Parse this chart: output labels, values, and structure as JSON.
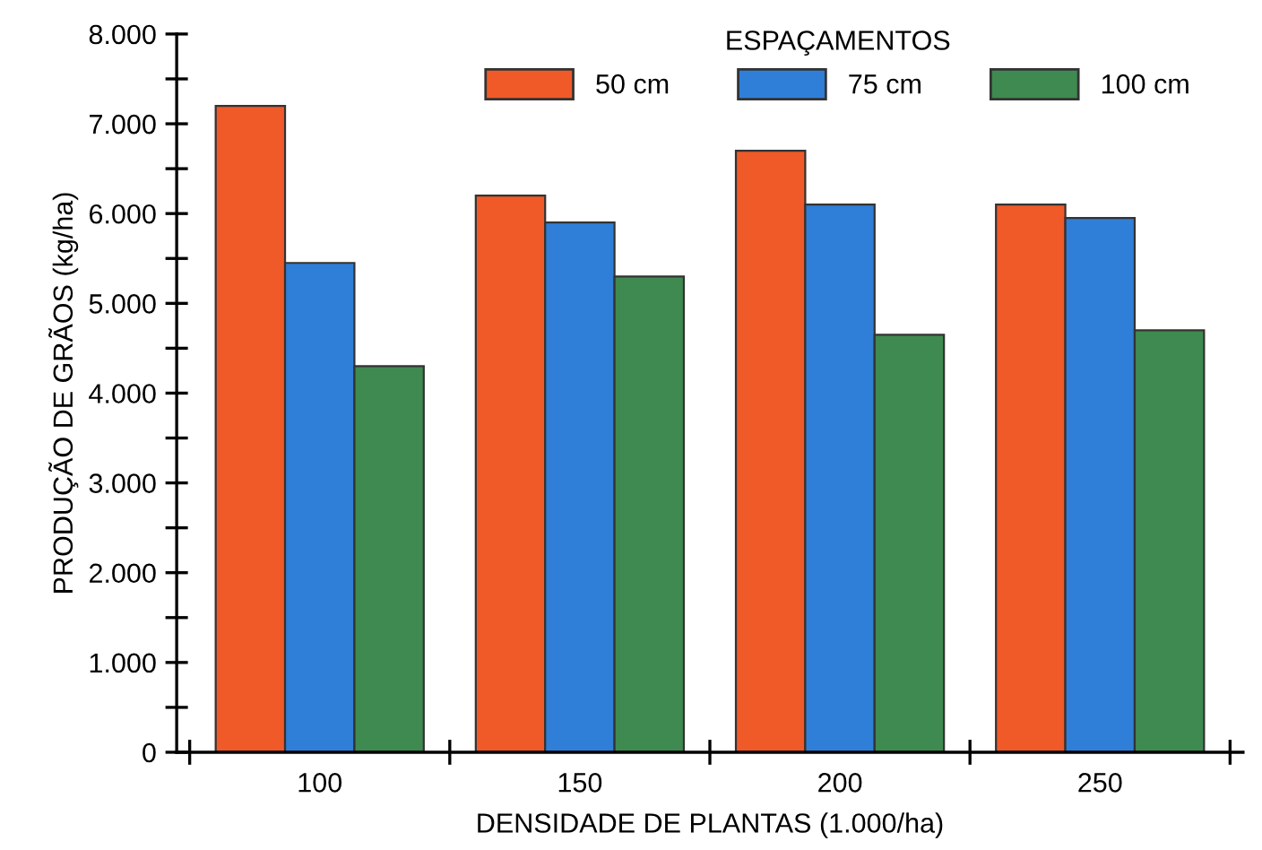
{
  "chart_data": {
    "type": "bar",
    "xlabel": "DENSIDADE DE PLANTAS (1.000/ha)",
    "ylabel": "PRODUÇÃO DE GRÃOS (kg/ha)",
    "legend_title": "ESPAÇAMENTOS",
    "categories": [
      "100",
      "150",
      "200",
      "250"
    ],
    "series": [
      {
        "name": "50 cm",
        "color": "#f05a28",
        "values": [
          7200,
          6200,
          6700,
          6100
        ]
      },
      {
        "name": "75 cm",
        "color": "#2f7fd8",
        "values": [
          5450,
          5900,
          6100,
          5950
        ]
      },
      {
        "name": "100 cm",
        "color": "#3f8a50",
        "values": [
          4300,
          5300,
          4650,
          4700
        ]
      }
    ],
    "ylim": [
      0,
      8000
    ],
    "yticks": [
      {
        "value": 0,
        "label": "0"
      },
      {
        "value": 500,
        "label": null
      },
      {
        "value": 1000,
        "label": "1.000"
      },
      {
        "value": 1500,
        "label": null
      },
      {
        "value": 2000,
        "label": "2.000"
      },
      {
        "value": 2500,
        "label": null
      },
      {
        "value": 3000,
        "label": "3.000"
      },
      {
        "value": 3500,
        "label": null
      },
      {
        "value": 4000,
        "label": "4.000"
      },
      {
        "value": 4500,
        "label": null
      },
      {
        "value": 5000,
        "label": "5.000"
      },
      {
        "value": 5500,
        "label": null
      },
      {
        "value": 6000,
        "label": "6.000"
      },
      {
        "value": 6500,
        "label": null
      },
      {
        "value": 7000,
        "label": "7.000"
      },
      {
        "value": 7500,
        "label": null
      },
      {
        "value": 8000,
        "label": "8.000"
      }
    ],
    "grid": false,
    "legend": "top"
  }
}
